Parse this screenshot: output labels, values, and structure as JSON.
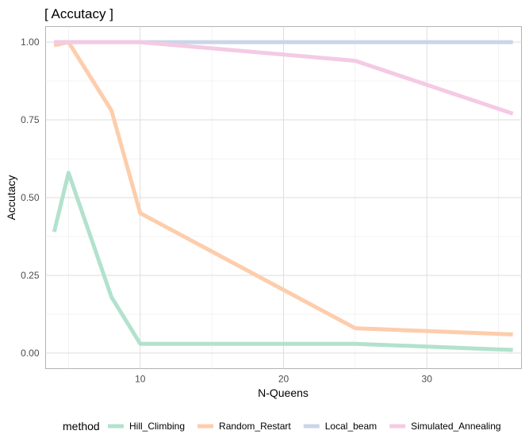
{
  "chart_data": {
    "type": "line",
    "title": "[ Accutacy ]",
    "xlabel": "N-Queens",
    "ylabel": "Accutacy",
    "xlim": [
      3.4,
      36.6
    ],
    "ylim": [
      -0.05,
      1.05
    ],
    "xticks": [
      10,
      20,
      30
    ],
    "xtick_labels": [
      "10",
      "20",
      "30"
    ],
    "yticks": [
      0,
      0.25,
      0.5,
      0.75,
      1
    ],
    "ytick_labels": [
      "0.00",
      "0.25",
      "0.50",
      "0.75",
      "1.00"
    ],
    "grid": true,
    "legend_title": "method",
    "legend_position": "bottom",
    "x": [
      4,
      5,
      8,
      10,
      25,
      36
    ],
    "series": [
      {
        "name": "Hill_Climbing",
        "color": "#b2e2cd",
        "values": [
          0.39,
          0.58,
          0.18,
          0.03,
          0.03,
          0.01
        ]
      },
      {
        "name": "Random_Restart",
        "color": "#fdcdac",
        "values": [
          0.99,
          1.0,
          0.78,
          0.45,
          0.08,
          0.06
        ]
      },
      {
        "name": "Local_beam",
        "color": "#cbd5e8",
        "values": [
          1.0,
          1.0,
          1.0,
          1.0,
          1.0,
          1.0
        ]
      },
      {
        "name": "Simulated_Annealing",
        "color": "#f4cae4",
        "values": [
          1.0,
          1.0,
          1.0,
          1.0,
          0.94,
          0.77
        ]
      }
    ]
  }
}
